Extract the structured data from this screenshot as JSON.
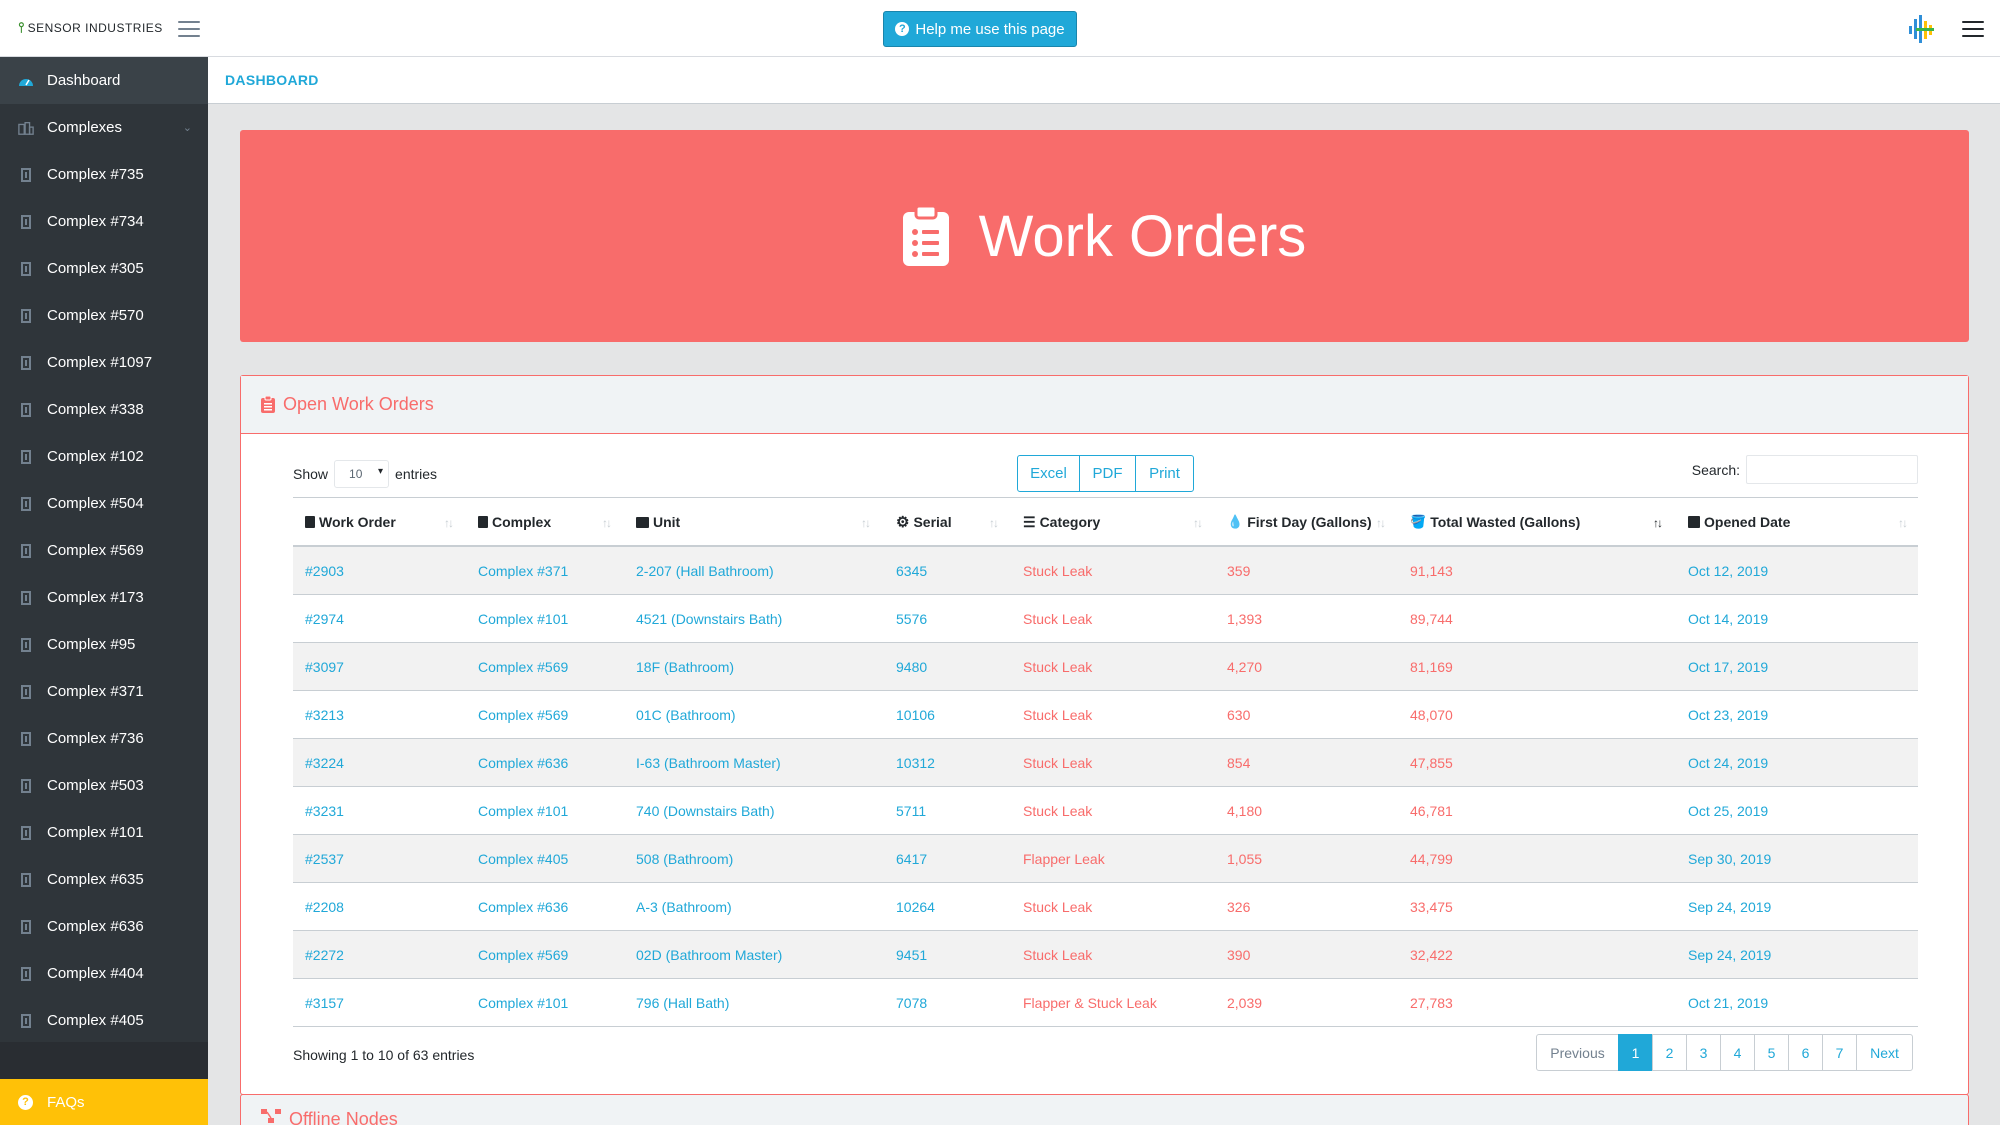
{
  "brand": {
    "name": "SENSOR INDUSTRIES"
  },
  "header": {
    "help_label": "Help me use this page"
  },
  "colors": {
    "primary": "#20a8d8",
    "danger": "#f86c6b",
    "warning": "#ffc107",
    "sidebar": "#2f353a"
  },
  "sidebar": {
    "items": [
      {
        "label": "Dashboard",
        "icon": "dashboard-icon"
      },
      {
        "label": "Complexes",
        "icon": "buildings-icon"
      },
      {
        "label": "Complex #735",
        "icon": "building-icon"
      },
      {
        "label": "Complex #734",
        "icon": "building-icon"
      },
      {
        "label": "Complex #305",
        "icon": "building-icon"
      },
      {
        "label": "Complex #570",
        "icon": "building-icon"
      },
      {
        "label": "Complex #1097",
        "icon": "building-icon"
      },
      {
        "label": "Complex #338",
        "icon": "building-icon"
      },
      {
        "label": "Complex #102",
        "icon": "building-icon"
      },
      {
        "label": "Complex #504",
        "icon": "building-icon"
      },
      {
        "label": "Complex #569",
        "icon": "building-icon"
      },
      {
        "label": "Complex #173",
        "icon": "building-icon"
      },
      {
        "label": "Complex #95",
        "icon": "building-icon"
      },
      {
        "label": "Complex #371",
        "icon": "building-icon"
      },
      {
        "label": "Complex #736",
        "icon": "building-icon"
      },
      {
        "label": "Complex #503",
        "icon": "building-icon"
      },
      {
        "label": "Complex #101",
        "icon": "building-icon"
      },
      {
        "label": "Complex #635",
        "icon": "building-icon"
      },
      {
        "label": "Complex #636",
        "icon": "building-icon"
      },
      {
        "label": "Complex #404",
        "icon": "building-icon"
      },
      {
        "label": "Complex #405",
        "icon": "building-icon"
      }
    ],
    "faq_label": "FAQs"
  },
  "breadcrumb": {
    "current": "DASHBOARD"
  },
  "banner": {
    "title": "Work Orders"
  },
  "open_orders": {
    "title": "Open Work Orders",
    "show_label": "Show",
    "entries_label": "entries",
    "page_size": "10",
    "export_buttons": [
      "Excel",
      "PDF",
      "Print"
    ],
    "search_label": "Search:",
    "search_value": "",
    "columns": [
      "Work Order",
      "Complex",
      "Unit",
      "Serial",
      "Category",
      "First Day (Gallons)",
      "Total Wasted (Gallons)",
      "Opened Date"
    ],
    "rows": [
      [
        "#2903",
        "Complex #371",
        "2-207 (Hall Bathroom)",
        "6345",
        "Stuck Leak",
        "359",
        "91,143",
        "Oct 12, 2019"
      ],
      [
        "#2974",
        "Complex #101",
        "4521 (Downstairs Bath)",
        "5576",
        "Stuck Leak",
        "1,393",
        "89,744",
        "Oct 14, 2019"
      ],
      [
        "#3097",
        "Complex #569",
        "18F (Bathroom)",
        "9480",
        "Stuck Leak",
        "4,270",
        "81,169",
        "Oct 17, 2019"
      ],
      [
        "#3213",
        "Complex #569",
        "01C (Bathroom)",
        "10106",
        "Stuck Leak",
        "630",
        "48,070",
        "Oct 23, 2019"
      ],
      [
        "#3224",
        "Complex #636",
        "I-63 (Bathroom Master)",
        "10312",
        "Stuck Leak",
        "854",
        "47,855",
        "Oct 24, 2019"
      ],
      [
        "#3231",
        "Complex #101",
        "740 (Downstairs Bath)",
        "5711",
        "Stuck Leak",
        "4,180",
        "46,781",
        "Oct 25, 2019"
      ],
      [
        "#2537",
        "Complex #405",
        "508 (Bathroom)",
        "6417",
        "Flapper Leak",
        "1,055",
        "44,799",
        "Sep 30, 2019"
      ],
      [
        "#2208",
        "Complex #636",
        "A-3 (Bathroom)",
        "10264",
        "Stuck Leak",
        "326",
        "33,475",
        "Sep 24, 2019"
      ],
      [
        "#2272",
        "Complex #569",
        "02D (Bathroom Master)",
        "9451",
        "Stuck Leak",
        "390",
        "32,422",
        "Sep 24, 2019"
      ],
      [
        "#3157",
        "Complex #101",
        "796 (Hall Bath)",
        "7078",
        "Flapper & Stuck Leak",
        "2,039",
        "27,783",
        "Oct 21, 2019"
      ]
    ],
    "info": "Showing 1 to 10 of 63 entries",
    "pagination": {
      "previous": "Previous",
      "next": "Next",
      "pages": [
        "1",
        "2",
        "3",
        "4",
        "5",
        "6",
        "7"
      ],
      "active": "1"
    }
  },
  "offline_nodes": {
    "title": "Offline Nodes"
  }
}
